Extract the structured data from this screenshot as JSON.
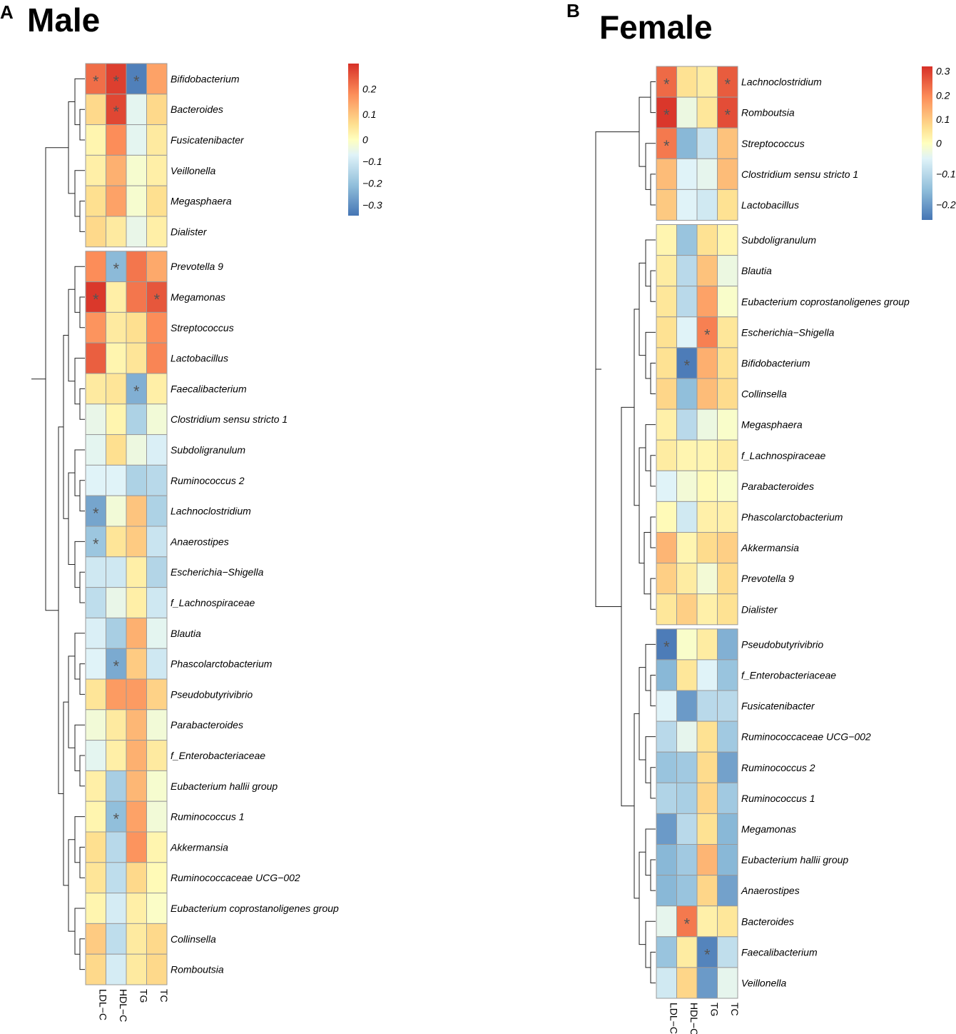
{
  "chart_data": [
    {
      "type": "heatmap",
      "panel": "A",
      "title": "Male",
      "columns": [
        "LDL−C",
        "HDL−C",
        "TG",
        "TC"
      ],
      "legend": {
        "ticks": [
          0.2,
          0.1,
          0,
          -0.1,
          -0.2,
          -0.3
        ],
        "tick_labels": [
          "0.2",
          "0.1",
          "0",
          "−0.1",
          "−0.2",
          "−0.3"
        ],
        "range": [
          -0.35,
          0.3
        ]
      },
      "groups": [
        [
          {
            "label": "Bifidobacterium",
            "values": [
              0.22,
              0.28,
              -0.33,
              0.15
            ],
            "sig": [
              true,
              true,
              true,
              false
            ]
          },
          {
            "label": "Bacteroides",
            "values": [
              0.07,
              0.27,
              -0.06,
              0.07
            ],
            "sig": [
              false,
              true,
              false,
              false
            ]
          },
          {
            "label": "Fusicatenibacter",
            "values": [
              0.02,
              0.18,
              -0.06,
              0.04
            ],
            "sig": [
              false,
              false,
              false,
              false
            ]
          },
          {
            "label": "Veillonella",
            "values": [
              0.03,
              0.13,
              -0.02,
              0.03
            ],
            "sig": [
              false,
              false,
              false,
              false
            ]
          },
          {
            "label": "Megasphaera",
            "values": [
              0.06,
              0.15,
              -0.02,
              0.06
            ],
            "sig": [
              false,
              false,
              false,
              false
            ]
          },
          {
            "label": "Dialister",
            "values": [
              0.07,
              0.04,
              -0.05,
              0.03
            ],
            "sig": [
              false,
              false,
              false,
              false
            ]
          }
        ],
        [
          {
            "label": "Prevotella 9",
            "values": [
              0.18,
              -0.22,
              0.21,
              0.14
            ],
            "sig": [
              false,
              true,
              false,
              false
            ]
          },
          {
            "label": "Megamonas",
            "values": [
              0.29,
              0.03,
              0.21,
              0.25
            ],
            "sig": [
              true,
              false,
              false,
              true
            ]
          },
          {
            "label": "Streptococcus",
            "values": [
              0.17,
              0.04,
              0.06,
              0.18
            ],
            "sig": [
              false,
              false,
              false,
              false
            ]
          },
          {
            "label": "Lactobacillus",
            "values": [
              0.24,
              0.02,
              0.05,
              0.19
            ],
            "sig": [
              false,
              false,
              false,
              false
            ]
          },
          {
            "label": "Faecalibacterium",
            "values": [
              0.04,
              0.05,
              -0.24,
              0.03
            ],
            "sig": [
              false,
              false,
              true,
              false
            ]
          },
          {
            "label": "Clostridium sensu stricto 1",
            "values": [
              -0.05,
              0.02,
              -0.16,
              -0.03
            ],
            "sig": [
              false,
              false,
              false,
              false
            ]
          },
          {
            "label": "Subdoligranulum",
            "values": [
              -0.06,
              0.06,
              -0.04,
              -0.08
            ],
            "sig": [
              false,
              false,
              false,
              false
            ]
          },
          {
            "label": "Ruminococcus 2",
            "values": [
              -0.07,
              -0.07,
              -0.16,
              -0.14
            ],
            "sig": [
              false,
              false,
              false,
              false
            ]
          },
          {
            "label": "Lachnoclostridium",
            "values": [
              -0.26,
              -0.03,
              0.1,
              -0.16
            ],
            "sig": [
              true,
              false,
              false,
              false
            ]
          },
          {
            "label": "Anaerostipes",
            "values": [
              -0.19,
              0.05,
              0.09,
              -0.11
            ],
            "sig": [
              true,
              false,
              false,
              false
            ]
          },
          {
            "label": "Escherichia−Shigella",
            "values": [
              -0.1,
              -0.1,
              0.03,
              -0.15
            ],
            "sig": [
              false,
              false,
              false,
              false
            ]
          },
          {
            "label": "f_Lachnospiraceae",
            "values": [
              -0.13,
              -0.05,
              0.03,
              -0.1
            ],
            "sig": [
              false,
              false,
              false,
              false
            ]
          },
          {
            "label": "Blautia",
            "values": [
              -0.08,
              -0.17,
              0.13,
              -0.06
            ],
            "sig": [
              false,
              false,
              false,
              false
            ]
          },
          {
            "label": "Phascolarctobacterium",
            "values": [
              -0.07,
              -0.25,
              0.09,
              -0.1
            ],
            "sig": [
              false,
              true,
              false,
              false
            ]
          },
          {
            "label": "Pseudobutyrivibrio",
            "values": [
              0.05,
              0.16,
              0.16,
              0.08
            ],
            "sig": [
              false,
              false,
              false,
              false
            ]
          },
          {
            "label": "Parabacteroides",
            "values": [
              -0.03,
              0.04,
              0.12,
              -0.03
            ],
            "sig": [
              false,
              false,
              false,
              false
            ]
          },
          {
            "label": "f_Enterobacteriaceae",
            "values": [
              -0.06,
              0.03,
              0.13,
              0.04
            ],
            "sig": [
              false,
              false,
              false,
              false
            ]
          },
          {
            "label": "Eubacterium hallii group",
            "values": [
              0.03,
              -0.17,
              0.12,
              -0.02
            ],
            "sig": [
              false,
              false,
              false,
              false
            ]
          },
          {
            "label": "Ruminococcus 1",
            "values": [
              0.02,
              -0.21,
              0.15,
              -0.03
            ],
            "sig": [
              false,
              true,
              false,
              false
            ]
          },
          {
            "label": "Akkermansia",
            "values": [
              0.06,
              -0.14,
              0.17,
              0.02
            ],
            "sig": [
              false,
              false,
              false,
              false
            ]
          },
          {
            "label": "Ruminococcaceae UCG−002",
            "values": [
              0.05,
              -0.13,
              0.07,
              0.01
            ],
            "sig": [
              false,
              false,
              false,
              false
            ]
          },
          {
            "label": "Eubacterium coprostanoligenes group",
            "values": [
              0.02,
              -0.09,
              0.03,
              -0.01
            ],
            "sig": [
              false,
              false,
              false,
              false
            ]
          },
          {
            "label": "Collinsella",
            "values": [
              0.09,
              -0.13,
              0.04,
              0.07
            ],
            "sig": [
              false,
              false,
              false,
              false
            ]
          },
          {
            "label": "Romboutsia",
            "values": [
              0.07,
              -0.09,
              0.04,
              0.07
            ],
            "sig": [
              false,
              false,
              false,
              false
            ]
          }
        ]
      ]
    },
    {
      "type": "heatmap",
      "panel": "B",
      "title": "Female",
      "columns": [
        "LDL−C",
        "HDL−C",
        "TG",
        "TC"
      ],
      "legend": {
        "ticks": [
          0.3,
          0.2,
          0.1,
          0,
          -0.1,
          -0.2
        ],
        "tick_labels": [
          "0.3",
          "0.2",
          "0.1",
          "0",
          "−0.1",
          "−0.2"
        ],
        "range": [
          -0.25,
          0.32
        ]
      },
      "groups": [
        [
          {
            "label": "Lachnoclostridium",
            "values": [
              0.24,
              0.06,
              0.04,
              0.26
            ],
            "sig": [
              true,
              false,
              false,
              true
            ]
          },
          {
            "label": "Romboutsia",
            "values": [
              0.31,
              -0.03,
              0.05,
              0.28
            ],
            "sig": [
              true,
              false,
              false,
              true
            ]
          },
          {
            "label": "Streptococcus",
            "values": [
              0.22,
              -0.16,
              -0.08,
              0.11
            ],
            "sig": [
              true,
              false,
              false,
              false
            ]
          },
          {
            "label": "Clostridium sensu stricto 1",
            "values": [
              0.12,
              -0.05,
              -0.04,
              0.12
            ],
            "sig": [
              false,
              false,
              false,
              false
            ]
          },
          {
            "label": "Lactobacillus",
            "values": [
              0.1,
              -0.05,
              -0.07,
              0.06
            ],
            "sig": [
              false,
              false,
              false,
              false
            ]
          }
        ],
        [
          {
            "label": "Subdoligranulum",
            "values": [
              0.02,
              -0.14,
              0.06,
              0.02
            ],
            "sig": [
              false,
              false,
              false,
              false
            ]
          },
          {
            "label": "Blautia",
            "values": [
              0.04,
              -0.1,
              0.11,
              -0.03
            ],
            "sig": [
              false,
              false,
              false,
              false
            ]
          },
          {
            "label": "Eubacterium coprostanoligenes group",
            "values": [
              0.05,
              -0.1,
              0.16,
              -0.01
            ],
            "sig": [
              false,
              false,
              false,
              false
            ]
          },
          {
            "label": "Escherichia−Shigella",
            "values": [
              0.06,
              -0.05,
              0.21,
              0.05
            ],
            "sig": [
              false,
              false,
              true,
              false
            ]
          },
          {
            "label": "Bifidobacterium",
            "values": [
              0.06,
              -0.24,
              0.14,
              0.06
            ],
            "sig": [
              false,
              true,
              false,
              false
            ]
          },
          {
            "label": "Collinsella",
            "values": [
              0.08,
              -0.15,
              0.12,
              0.07
            ],
            "sig": [
              false,
              false,
              false,
              false
            ]
          },
          {
            "label": "Megasphaera",
            "values": [
              0.03,
              -0.1,
              -0.03,
              -0.01
            ],
            "sig": [
              false,
              false,
              false,
              false
            ]
          },
          {
            "label": "f_Lachnospiraceae",
            "values": [
              0.04,
              0.02,
              0.02,
              0.04
            ],
            "sig": [
              false,
              false,
              false,
              false
            ]
          },
          {
            "label": "Parabacteroides",
            "values": [
              -0.05,
              -0.02,
              0.01,
              -0.01
            ],
            "sig": [
              false,
              false,
              false,
              false
            ]
          },
          {
            "label": "Phascolarctobacterium",
            "values": [
              0.01,
              -0.07,
              0.03,
              0.03
            ],
            "sig": [
              false,
              false,
              false,
              false
            ]
          },
          {
            "label": "Akkermansia",
            "values": [
              0.13,
              0.02,
              0.07,
              0.09
            ],
            "sig": [
              false,
              false,
              false,
              false
            ]
          },
          {
            "label": "Prevotella 9",
            "values": [
              0.09,
              0.04,
              -0.02,
              0.07
            ],
            "sig": [
              false,
              false,
              false,
              false
            ]
          },
          {
            "label": "Dialister",
            "values": [
              0.05,
              0.09,
              0.03,
              0.06
            ],
            "sig": [
              false,
              false,
              false,
              false
            ]
          }
        ],
        [
          {
            "label": "Pseudobutyrivibrio",
            "values": [
              -0.24,
              -0.01,
              0.04,
              -0.17
            ],
            "sig": [
              true,
              false,
              false,
              false
            ]
          },
          {
            "label": "f_Enterobacteriaceae",
            "values": [
              -0.16,
              0.05,
              -0.05,
              -0.14
            ],
            "sig": [
              false,
              false,
              false,
              false
            ]
          },
          {
            "label": "Fusicatenibacter",
            "values": [
              -0.05,
              -0.2,
              -0.1,
              -0.1
            ],
            "sig": [
              false,
              false,
              false,
              false
            ]
          },
          {
            "label": "Ruminococcaceae UCG−002",
            "values": [
              -0.1,
              -0.04,
              0.06,
              -0.13
            ],
            "sig": [
              false,
              false,
              false,
              false
            ]
          },
          {
            "label": "Ruminococcus 2",
            "values": [
              -0.14,
              -0.13,
              0.07,
              -0.19
            ],
            "sig": [
              false,
              false,
              false,
              false
            ]
          },
          {
            "label": "Ruminococcus 1",
            "values": [
              -0.11,
              -0.12,
              0.08,
              -0.13
            ],
            "sig": [
              false,
              false,
              false,
              false
            ]
          },
          {
            "label": "Megamonas",
            "values": [
              -0.2,
              -0.1,
              0.06,
              -0.16
            ],
            "sig": [
              false,
              false,
              false,
              false
            ]
          },
          {
            "label": "Eubacterium hallii group",
            "values": [
              -0.16,
              -0.13,
              0.13,
              -0.16
            ],
            "sig": [
              false,
              false,
              false,
              false
            ]
          },
          {
            "label": "Anaerostipes",
            "values": [
              -0.16,
              -0.14,
              0.08,
              -0.19
            ],
            "sig": [
              false,
              false,
              false,
              false
            ]
          },
          {
            "label": "Bacteroides",
            "values": [
              -0.04,
              0.22,
              0.03,
              0.05
            ],
            "sig": [
              false,
              true,
              false,
              false
            ]
          },
          {
            "label": "Faecalibacterium",
            "values": [
              -0.14,
              0.04,
              -0.23,
              -0.09
            ],
            "sig": [
              false,
              false,
              true,
              false
            ]
          },
          {
            "label": "Veillonella",
            "values": [
              -0.07,
              0.08,
              -0.2,
              -0.04
            ],
            "sig": [
              false,
              false,
              false,
              false
            ]
          }
        ]
      ]
    }
  ],
  "significance_marker": "*"
}
